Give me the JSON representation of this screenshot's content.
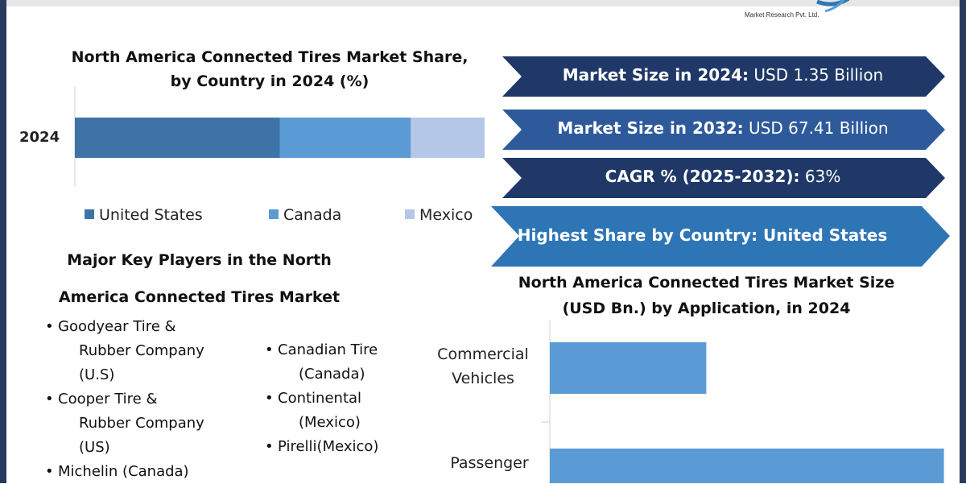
{
  "logo": {
    "company": "Market Research Pvt. Ltd."
  },
  "banners": [
    {
      "bold": "Market Size in 2024:",
      "text": " USD 1.35 Billion",
      "color": "#1f3868"
    },
    {
      "bold": "Market Size in 2032:",
      "text": " USD 67.41 Billion",
      "color": "#2e5a9c"
    },
    {
      "bold": "CAGR % (2025-2032):",
      "text": " 63%",
      "color": "#1f3868"
    },
    {
      "bold": "Highest Share by Country: United States",
      "text": "",
      "color": "#2e75b6"
    }
  ],
  "players": {
    "title_line1": "Major Key Players in the North",
    "title_line2": "America Connected Tires Market",
    "left": [
      [
        "Goodyear Tire &",
        "Rubber Company",
        "(U.S)"
      ],
      [
        "Cooper Tire &",
        "Rubber Company",
        "(US)"
      ],
      [
        "Michelin (Canada)"
      ]
    ],
    "right": [
      [
        "Canadian Tire",
        "(Canada)"
      ],
      [
        "Continental",
        "(Mexico)"
      ],
      [
        "Pirelli(Mexico)"
      ]
    ]
  },
  "chart_data": [
    {
      "type": "bar",
      "orientation": "horizontal-stacked",
      "title": "North America Connected Tires Market Share, by Country in 2024 (%)",
      "title_line1": "North America Connected Tires Market Share,",
      "title_line2": "by Country in 2024 (%)",
      "categories": [
        "2024"
      ],
      "series": [
        {
          "name": "United States",
          "values": [
            50
          ],
          "color": "#3f73a7"
        },
        {
          "name": "Canada",
          "values": [
            32
          ],
          "color": "#5b9bd5"
        },
        {
          "name": "Mexico",
          "values": [
            18
          ],
          "color": "#b4c7e7"
        }
      ],
      "legend": "bottom",
      "grid": false
    },
    {
      "type": "bar",
      "orientation": "horizontal",
      "title": "North America Connected Tires Market Size (USD Bn.) by Application, in 2024",
      "title_line1": "North America Connected Tires Market Size",
      "title_line2": "(USD Bn.) by Application, in 2024",
      "categories": [
        [
          "Commercial",
          "Vehicles"
        ],
        [
          "Passenger",
          ""
        ]
      ],
      "values": [
        0.27,
        0.68
      ],
      "xlim": [
        0,
        0.75
      ],
      "color": "#5b9bd5",
      "grid": false
    }
  ]
}
